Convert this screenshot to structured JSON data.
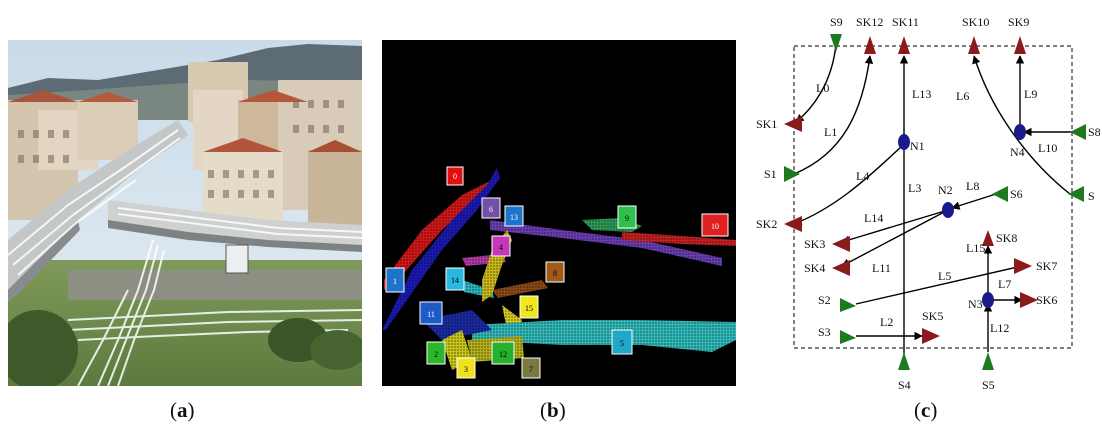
{
  "captions": {
    "a": "a",
    "b": "b",
    "c": "c"
  },
  "panel_b": {
    "labels": [
      "0",
      "1",
      "2",
      "3",
      "4",
      "5",
      "6",
      "7",
      "8",
      "9",
      "10",
      "11",
      "12",
      "13",
      "14",
      "15"
    ]
  },
  "panel_c": {
    "sources": [
      "S1",
      "S2",
      "S3",
      "S4",
      "S5",
      "S6",
      "S8",
      "S9",
      "S"
    ],
    "sinks": [
      "SK1",
      "SK2",
      "SK3",
      "SK4",
      "SK5",
      "SK6",
      "SK7",
      "SK8",
      "SK9",
      "SK10",
      "SK11",
      "SK12"
    ],
    "nodes": [
      "N1",
      "N2",
      "N3",
      "N4"
    ],
    "links": [
      "L0",
      "L1",
      "L2",
      "L3",
      "L4",
      "L5",
      "L6",
      "L7",
      "L8",
      "L9",
      "L10",
      "L11",
      "L12",
      "L13",
      "L14",
      "L15"
    ],
    "colors": {
      "source": "#1e7a1e",
      "sink": "#8b1a1a",
      "node": "#1a1a8c"
    }
  }
}
